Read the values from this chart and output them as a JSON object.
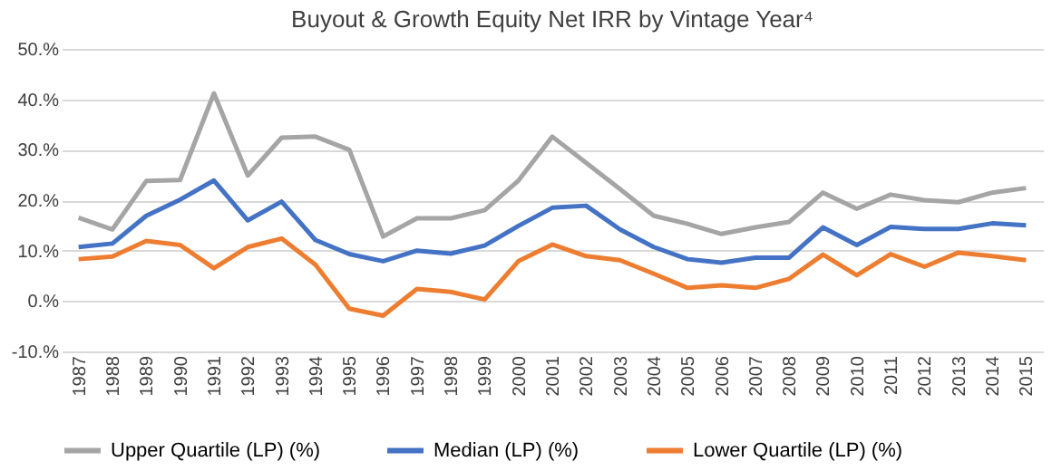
{
  "chart_data": {
    "type": "line",
    "title": "Buyout & Growth Equity Net IRR by Vintage Year⁴",
    "categories": [
      "1987",
      "1988",
      "1989",
      "1990",
      "1991",
      "1992",
      "1993",
      "1994",
      "1995",
      "1996",
      "1997",
      "1998",
      "1999",
      "2000",
      "2001",
      "2002",
      "2003",
      "2004",
      "2005",
      "2006",
      "2007",
      "2008",
      "2009",
      "2010",
      "2011",
      "2012",
      "2013",
      "2014",
      "2015"
    ],
    "series": [
      {
        "name": "Upper Quartile (LP) (%)",
        "color": "#a5a5a5",
        "values": [
          16.5,
          14.2,
          23.8,
          24,
          41.2,
          24.9,
          32.4,
          32.6,
          30,
          12.8,
          16.4,
          16.4,
          18,
          23.9,
          32.6,
          27.4,
          22.2,
          16.9,
          15.3,
          13.3,
          14.6,
          15.7,
          21.5,
          18.3,
          21.1,
          20,
          19.6,
          21.5,
          22.4
        ]
      },
      {
        "name": "Median (LP) (%)",
        "color": "#4472c4",
        "values": [
          10.7,
          11.4,
          16.9,
          20.1,
          23.9,
          16,
          19.7,
          12.1,
          9.3,
          7.9,
          10,
          9.4,
          11,
          14.9,
          18.5,
          18.9,
          14.2,
          10.7,
          8.3,
          7.6,
          8.6,
          8.6,
          14.6,
          11.1,
          14.7,
          14.3,
          14.3,
          15.4,
          15
        ]
      },
      {
        "name": "Lower Quartile (LP) (%)",
        "color": "#ed7d31",
        "values": [
          8.3,
          8.8,
          11.9,
          11.1,
          6.5,
          10.7,
          12.4,
          7.2,
          -1.5,
          -2.9,
          2.4,
          1.8,
          0.3,
          7.9,
          11.2,
          8.9,
          8.1,
          5.4,
          2.6,
          3.1,
          2.6,
          4.4,
          9.2,
          5.1,
          9.3,
          6.8,
          9.6,
          8.9,
          8.1
        ]
      }
    ],
    "ylim": [
      -10,
      50
    ],
    "yticks": [
      {
        "value": -10,
        "label": "-10.%"
      },
      {
        "value": 0,
        "label": "0.%"
      },
      {
        "value": 10,
        "label": "10.%"
      },
      {
        "value": 20,
        "label": "20.%"
      },
      {
        "value": 30,
        "label": "30.%"
      },
      {
        "value": 40,
        "label": "40.%"
      },
      {
        "value": 50,
        "label": "50.%"
      }
    ],
    "grid": "y",
    "legend": "bottom",
    "marker": "none",
    "line_style": "solid"
  }
}
